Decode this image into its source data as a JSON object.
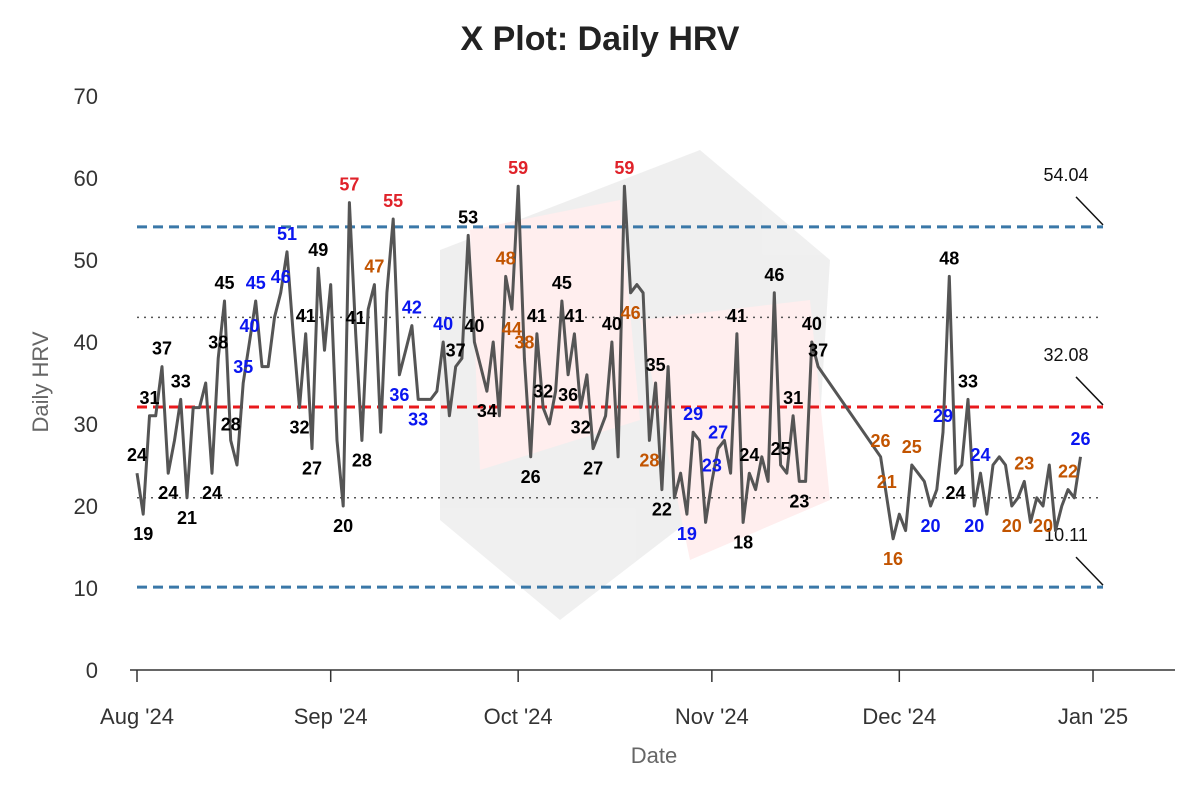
{
  "chart_data": {
    "type": "line",
    "title": "X Plot: Daily HRV",
    "xlabel": "Date",
    "ylabel": "Daily HRV",
    "ylim": [
      0,
      70
    ],
    "y_ticks": [
      0,
      10,
      20,
      30,
      40,
      50,
      60,
      70
    ],
    "x_ticks": [
      {
        "label": "Aug '24",
        "date": "2024-08-01"
      },
      {
        "label": "Sep '24",
        "date": "2024-09-01"
      },
      {
        "label": "Oct '24",
        "date": "2024-10-01"
      },
      {
        "label": "Nov '24",
        "date": "2024-11-01"
      },
      {
        "label": "Dec '24",
        "date": "2024-12-01"
      },
      {
        "label": "Jan '25",
        "date": "2025-01-01"
      }
    ],
    "x_range": [
      "2024-08-01",
      "2025-01-09"
    ],
    "grid": false,
    "line_color": "#555555",
    "reference_lines": [
      {
        "name": "upper-limit",
        "value": 54.04,
        "label": "54.04",
        "color": "#3a78a8",
        "style": "dashed"
      },
      {
        "name": "mean",
        "value": 32.08,
        "label": "32.08",
        "color": "#e8191c",
        "style": "dashed"
      },
      {
        "name": "lower-limit",
        "value": 10.11,
        "label": "10.11",
        "color": "#3a78a8",
        "style": "dashed"
      },
      {
        "name": "upper-zone",
        "value": 43,
        "label": "",
        "color": "#555555",
        "style": "dotted"
      },
      {
        "name": "lower-zone",
        "value": 21,
        "label": "",
        "color": "#555555",
        "style": "dotted"
      }
    ],
    "label_colors": {
      "k": "#000000",
      "b": "#0a16f0",
      "o": "#c25400",
      "r": "#e0222a"
    },
    "points": [
      {
        "date": "2024-08-01",
        "y": 24,
        "label": "24",
        "c": "k"
      },
      {
        "date": "2024-08-02",
        "y": 19,
        "label": "19",
        "c": "k"
      },
      {
        "date": "2024-08-03",
        "y": 31,
        "label": "31",
        "c": "k"
      },
      {
        "date": "2024-08-04",
        "y": 31
      },
      {
        "date": "2024-08-05",
        "y": 37,
        "label": "37",
        "c": "k"
      },
      {
        "date": "2024-08-06",
        "y": 24,
        "label": "24",
        "c": "k"
      },
      {
        "date": "2024-08-07",
        "y": 28
      },
      {
        "date": "2024-08-08",
        "y": 33,
        "label": "33",
        "c": "k"
      },
      {
        "date": "2024-08-09",
        "y": 21,
        "label": "21",
        "c": "k"
      },
      {
        "date": "2024-08-10",
        "y": 32
      },
      {
        "date": "2024-08-11",
        "y": 32
      },
      {
        "date": "2024-08-12",
        "y": 35
      },
      {
        "date": "2024-08-13",
        "y": 24,
        "label": "24",
        "c": "k"
      },
      {
        "date": "2024-08-14",
        "y": 38,
        "label": "38",
        "c": "k"
      },
      {
        "date": "2024-08-15",
        "y": 45,
        "label": "45",
        "c": "k"
      },
      {
        "date": "2024-08-16",
        "y": 28,
        "label": "28",
        "c": "k"
      },
      {
        "date": "2024-08-17",
        "y": 25
      },
      {
        "date": "2024-08-18",
        "y": 35,
        "label": "35",
        "c": "b"
      },
      {
        "date": "2024-08-19",
        "y": 40,
        "label": "40",
        "c": "b"
      },
      {
        "date": "2024-08-20",
        "y": 45,
        "label": "45",
        "c": "b"
      },
      {
        "date": "2024-08-21",
        "y": 37
      },
      {
        "date": "2024-08-22",
        "y": 37
      },
      {
        "date": "2024-08-23",
        "y": 43
      },
      {
        "date": "2024-08-24",
        "y": 46,
        "label": "46",
        "c": "b"
      },
      {
        "date": "2024-08-25",
        "y": 51,
        "label": "51",
        "c": "b"
      },
      {
        "date": "2024-08-26",
        "y": 41
      },
      {
        "date": "2024-08-27",
        "y": 32,
        "label": "32",
        "c": "k"
      },
      {
        "date": "2024-08-28",
        "y": 41,
        "label": "41",
        "c": "k"
      },
      {
        "date": "2024-08-29",
        "y": 27,
        "label": "27",
        "c": "k"
      },
      {
        "date": "2024-08-30",
        "y": 49,
        "label": "49",
        "c": "k"
      },
      {
        "date": "2024-08-31",
        "y": 39
      },
      {
        "date": "2024-09-01",
        "y": 47
      },
      {
        "date": "2024-09-02",
        "y": 28
      },
      {
        "date": "2024-09-03",
        "y": 20,
        "label": "20",
        "c": "k"
      },
      {
        "date": "2024-09-04",
        "y": 57,
        "label": "57",
        "c": "r"
      },
      {
        "date": "2024-09-05",
        "y": 41,
        "label": "41",
        "c": "k"
      },
      {
        "date": "2024-09-06",
        "y": 28,
        "label": "28",
        "c": "k"
      },
      {
        "date": "2024-09-07",
        "y": 44
      },
      {
        "date": "2024-09-08",
        "y": 47,
        "label": "47",
        "c": "o"
      },
      {
        "date": "2024-09-09",
        "y": 29
      },
      {
        "date": "2024-09-10",
        "y": 46
      },
      {
        "date": "2024-09-11",
        "y": 55,
        "label": "55",
        "c": "r"
      },
      {
        "date": "2024-09-12",
        "y": 36,
        "label": "36",
        "c": "b"
      },
      {
        "date": "2024-09-13",
        "y": 39
      },
      {
        "date": "2024-09-14",
        "y": 42,
        "label": "42",
        "c": "b"
      },
      {
        "date": "2024-09-15",
        "y": 33,
        "label": "33",
        "c": "b"
      },
      {
        "date": "2024-09-16",
        "y": 33
      },
      {
        "date": "2024-09-17",
        "y": 33
      },
      {
        "date": "2024-09-18",
        "y": 34
      },
      {
        "date": "2024-09-19",
        "y": 40,
        "label": "40",
        "c": "b"
      },
      {
        "date": "2024-09-20",
        "y": 31
      },
      {
        "date": "2024-09-21",
        "y": 37,
        "label": "37",
        "c": "k"
      },
      {
        "date": "2024-09-22",
        "y": 38
      },
      {
        "date": "2024-09-23",
        "y": 53,
        "label": "53",
        "c": "k"
      },
      {
        "date": "2024-09-24",
        "y": 40,
        "label": "40",
        "c": "k"
      },
      {
        "date": "2024-09-25",
        "y": 37
      },
      {
        "date": "2024-09-26",
        "y": 34,
        "label": "34",
        "c": "k"
      },
      {
        "date": "2024-09-27",
        "y": 40
      },
      {
        "date": "2024-09-28",
        "y": 31
      },
      {
        "date": "2024-09-29",
        "y": 48,
        "label": "48",
        "c": "o"
      },
      {
        "date": "2024-09-30",
        "y": 44,
        "label": "44",
        "c": "o"
      },
      {
        "date": "2024-10-01",
        "y": 59,
        "label": "59",
        "c": "r"
      },
      {
        "date": "2024-10-02",
        "y": 38,
        "label": "38",
        "c": "o"
      },
      {
        "date": "2024-10-03",
        "y": 26,
        "label": "26",
        "c": "k"
      },
      {
        "date": "2024-10-04",
        "y": 41,
        "label": "41",
        "c": "k"
      },
      {
        "date": "2024-10-05",
        "y": 32,
        "label": "32",
        "c": "k"
      },
      {
        "date": "2024-10-06",
        "y": 30
      },
      {
        "date": "2024-10-07",
        "y": 34
      },
      {
        "date": "2024-10-08",
        "y": 45,
        "label": "45",
        "c": "k"
      },
      {
        "date": "2024-10-09",
        "y": 36,
        "label": "36",
        "c": "k"
      },
      {
        "date": "2024-10-10",
        "y": 41,
        "label": "41",
        "c": "k"
      },
      {
        "date": "2024-10-11",
        "y": 32,
        "label": "32",
        "c": "k"
      },
      {
        "date": "2024-10-12",
        "y": 36
      },
      {
        "date": "2024-10-13",
        "y": 27,
        "label": "27",
        "c": "k"
      },
      {
        "date": "2024-10-14",
        "y": 29
      },
      {
        "date": "2024-10-15",
        "y": 31
      },
      {
        "date": "2024-10-16",
        "y": 40,
        "label": "40",
        "c": "k"
      },
      {
        "date": "2024-10-17",
        "y": 26
      },
      {
        "date": "2024-10-18",
        "y": 59,
        "label": "59",
        "c": "r"
      },
      {
        "date": "2024-10-19",
        "y": 46,
        "label": "46",
        "c": "o"
      },
      {
        "date": "2024-10-20",
        "y": 47
      },
      {
        "date": "2024-10-21",
        "y": 46
      },
      {
        "date": "2024-10-22",
        "y": 28,
        "label": "28",
        "c": "o"
      },
      {
        "date": "2024-10-23",
        "y": 35,
        "label": "35",
        "c": "k"
      },
      {
        "date": "2024-10-24",
        "y": 22,
        "label": "22",
        "c": "k"
      },
      {
        "date": "2024-10-25",
        "y": 37
      },
      {
        "date": "2024-10-26",
        "y": 21
      },
      {
        "date": "2024-10-27",
        "y": 24
      },
      {
        "date": "2024-10-28",
        "y": 19,
        "label": "19",
        "c": "b"
      },
      {
        "date": "2024-10-29",
        "y": 29,
        "label": "29",
        "c": "b"
      },
      {
        "date": "2024-10-30",
        "y": 28
      },
      {
        "date": "2024-10-31",
        "y": 18
      },
      {
        "date": "2024-11-01",
        "y": 23,
        "label": "23",
        "c": "b"
      },
      {
        "date": "2024-11-02",
        "y": 27,
        "label": "27",
        "c": "b"
      },
      {
        "date": "2024-11-03",
        "y": 28
      },
      {
        "date": "2024-11-04",
        "y": 24
      },
      {
        "date": "2024-11-05",
        "y": 41,
        "label": "41",
        "c": "k"
      },
      {
        "date": "2024-11-06",
        "y": 18,
        "label": "18",
        "c": "k"
      },
      {
        "date": "2024-11-07",
        "y": 24,
        "label": "24",
        "c": "k"
      },
      {
        "date": "2024-11-08",
        "y": 22
      },
      {
        "date": "2024-11-09",
        "y": 26
      },
      {
        "date": "2024-11-10",
        "y": 23
      },
      {
        "date": "2024-11-11",
        "y": 46,
        "label": "46",
        "c": "k"
      },
      {
        "date": "2024-11-12",
        "y": 25,
        "label": "25",
        "c": "k"
      },
      {
        "date": "2024-11-13",
        "y": 24
      },
      {
        "date": "2024-11-14",
        "y": 31,
        "label": "31",
        "c": "k"
      },
      {
        "date": "2024-11-15",
        "y": 23,
        "label": "23",
        "c": "k"
      },
      {
        "date": "2024-11-16",
        "y": 23
      },
      {
        "date": "2024-11-17",
        "y": 40,
        "label": "40",
        "c": "k"
      },
      {
        "date": "2024-11-18",
        "y": 37,
        "label": "37",
        "c": "k"
      },
      {
        "date": "2024-11-28",
        "y": 26,
        "label": "26",
        "c": "o"
      },
      {
        "date": "2024-11-29",
        "y": 21,
        "label": "21",
        "c": "o"
      },
      {
        "date": "2024-11-30",
        "y": 16,
        "label": "16",
        "c": "o"
      },
      {
        "date": "2024-12-01",
        "y": 19
      },
      {
        "date": "2024-12-02",
        "y": 17
      },
      {
        "date": "2024-12-03",
        "y": 25,
        "label": "25",
        "c": "o"
      },
      {
        "date": "2024-12-04",
        "y": 24
      },
      {
        "date": "2024-12-05",
        "y": 23
      },
      {
        "date": "2024-12-06",
        "y": 20,
        "label": "20",
        "c": "b"
      },
      {
        "date": "2024-12-07",
        "y": 22
      },
      {
        "date": "2024-12-08",
        "y": 29,
        "label": "29",
        "c": "b"
      },
      {
        "date": "2024-12-09",
        "y": 48,
        "label": "48",
        "c": "k"
      },
      {
        "date": "2024-12-10",
        "y": 24,
        "label": "24",
        "c": "k"
      },
      {
        "date": "2024-12-11",
        "y": 25
      },
      {
        "date": "2024-12-12",
        "y": 33,
        "label": "33",
        "c": "k"
      },
      {
        "date": "2024-12-13",
        "y": 20,
        "label": "20",
        "c": "b"
      },
      {
        "date": "2024-12-14",
        "y": 24,
        "label": "24",
        "c": "b"
      },
      {
        "date": "2024-12-15",
        "y": 19
      },
      {
        "date": "2024-12-16",
        "y": 25
      },
      {
        "date": "2024-12-17",
        "y": 26
      },
      {
        "date": "2024-12-18",
        "y": 25
      },
      {
        "date": "2024-12-19",
        "y": 20,
        "label": "20",
        "c": "o"
      },
      {
        "date": "2024-12-20",
        "y": 21
      },
      {
        "date": "2024-12-21",
        "y": 23,
        "label": "23",
        "c": "o"
      },
      {
        "date": "2024-12-22",
        "y": 18
      },
      {
        "date": "2024-12-23",
        "y": 21
      },
      {
        "date": "2024-12-24",
        "y": 20,
        "label": "20",
        "c": "o"
      },
      {
        "date": "2024-12-25",
        "y": 25
      },
      {
        "date": "2024-12-26",
        "y": 17
      },
      {
        "date": "2024-12-27",
        "y": 20
      },
      {
        "date": "2024-12-28",
        "y": 22,
        "label": "22",
        "c": "o"
      },
      {
        "date": "2024-12-29",
        "y": 21
      },
      {
        "date": "2024-12-30",
        "y": 26,
        "label": "26",
        "c": "b"
      }
    ]
  }
}
